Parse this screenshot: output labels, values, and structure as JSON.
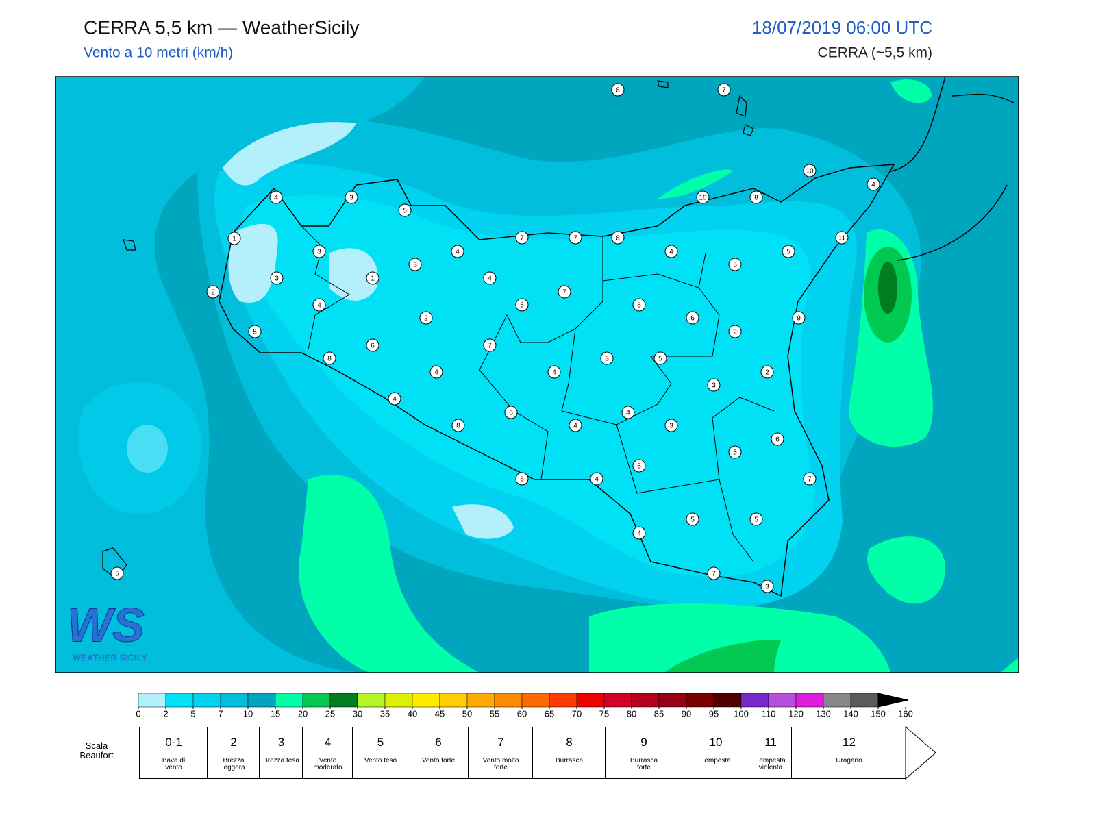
{
  "header": {
    "title": "CERRA 5,5 km — WeatherSicily",
    "subtitle": "Vento a 10 metri (km/h)",
    "datetime": "18/07/2019 06:00 UTC",
    "model": "CERRA (~5,5 km)"
  },
  "logo": {
    "mark": "WS",
    "text": "WEATHER SICILY"
  },
  "stations": [
    8,
    7,
    4,
    3,
    5,
    10,
    10,
    8,
    4,
    1,
    3,
    7,
    7,
    8,
    11,
    4,
    3,
    4,
    5,
    5,
    3,
    1,
    4,
    2,
    7,
    4,
    5,
    6,
    6,
    9,
    2,
    2,
    5,
    6,
    7,
    8,
    3,
    5,
    4,
    4,
    2,
    3,
    4,
    6,
    4,
    8,
    4,
    3,
    6,
    5,
    5,
    6,
    4,
    7,
    5,
    5,
    4,
    5,
    7,
    3
  ],
  "colorbar": {
    "ticks": [
      0,
      2,
      5,
      7,
      10,
      15,
      20,
      25,
      30,
      35,
      40,
      45,
      50,
      55,
      60,
      65,
      70,
      75,
      80,
      85,
      90,
      95,
      100,
      110,
      120,
      130,
      140,
      150,
      160
    ],
    "colors": [
      "#b3f0fb",
      "#00e1f5",
      "#00d2f0",
      "#00bedc",
      "#00a5be",
      "#00ffa8",
      "#00c850",
      "#007d20",
      "#b4f528",
      "#dcf000",
      "#ffeb00",
      "#ffcd00",
      "#ffaa00",
      "#ff8c00",
      "#ff6a00",
      "#ff3c00",
      "#f00000",
      "#d20028",
      "#b4001e",
      "#960014",
      "#780000",
      "#500000",
      "#7828c8",
      "#b450dc",
      "#dc1edc",
      "#888888",
      "#5a5a5a",
      "#000000",
      "#8c4628",
      "#d2874b"
    ]
  },
  "beaufort": {
    "label": "Scala Beaufort",
    "levels": [
      {
        "number": "0-1",
        "name": "Bava di vento"
      },
      {
        "number": 2,
        "name": "Brezza leggera"
      },
      {
        "number": 3,
        "name": "Brezza tesa"
      },
      {
        "number": 4,
        "name": "Vento moderato"
      },
      {
        "number": 5,
        "name": "Vento teso"
      },
      {
        "number": 6,
        "name": "Vento forte"
      },
      {
        "number": 7,
        "name": "Vento molto forte"
      },
      {
        "number": 8,
        "name": "Burrasca"
      },
      {
        "number": 9,
        "name": "Burrasca forte"
      },
      {
        "number": 10,
        "name": "Tempesta"
      },
      {
        "number": 11,
        "name": "Tempesta violenta"
      },
      {
        "number": 12,
        "name": "Uragano"
      }
    ]
  }
}
